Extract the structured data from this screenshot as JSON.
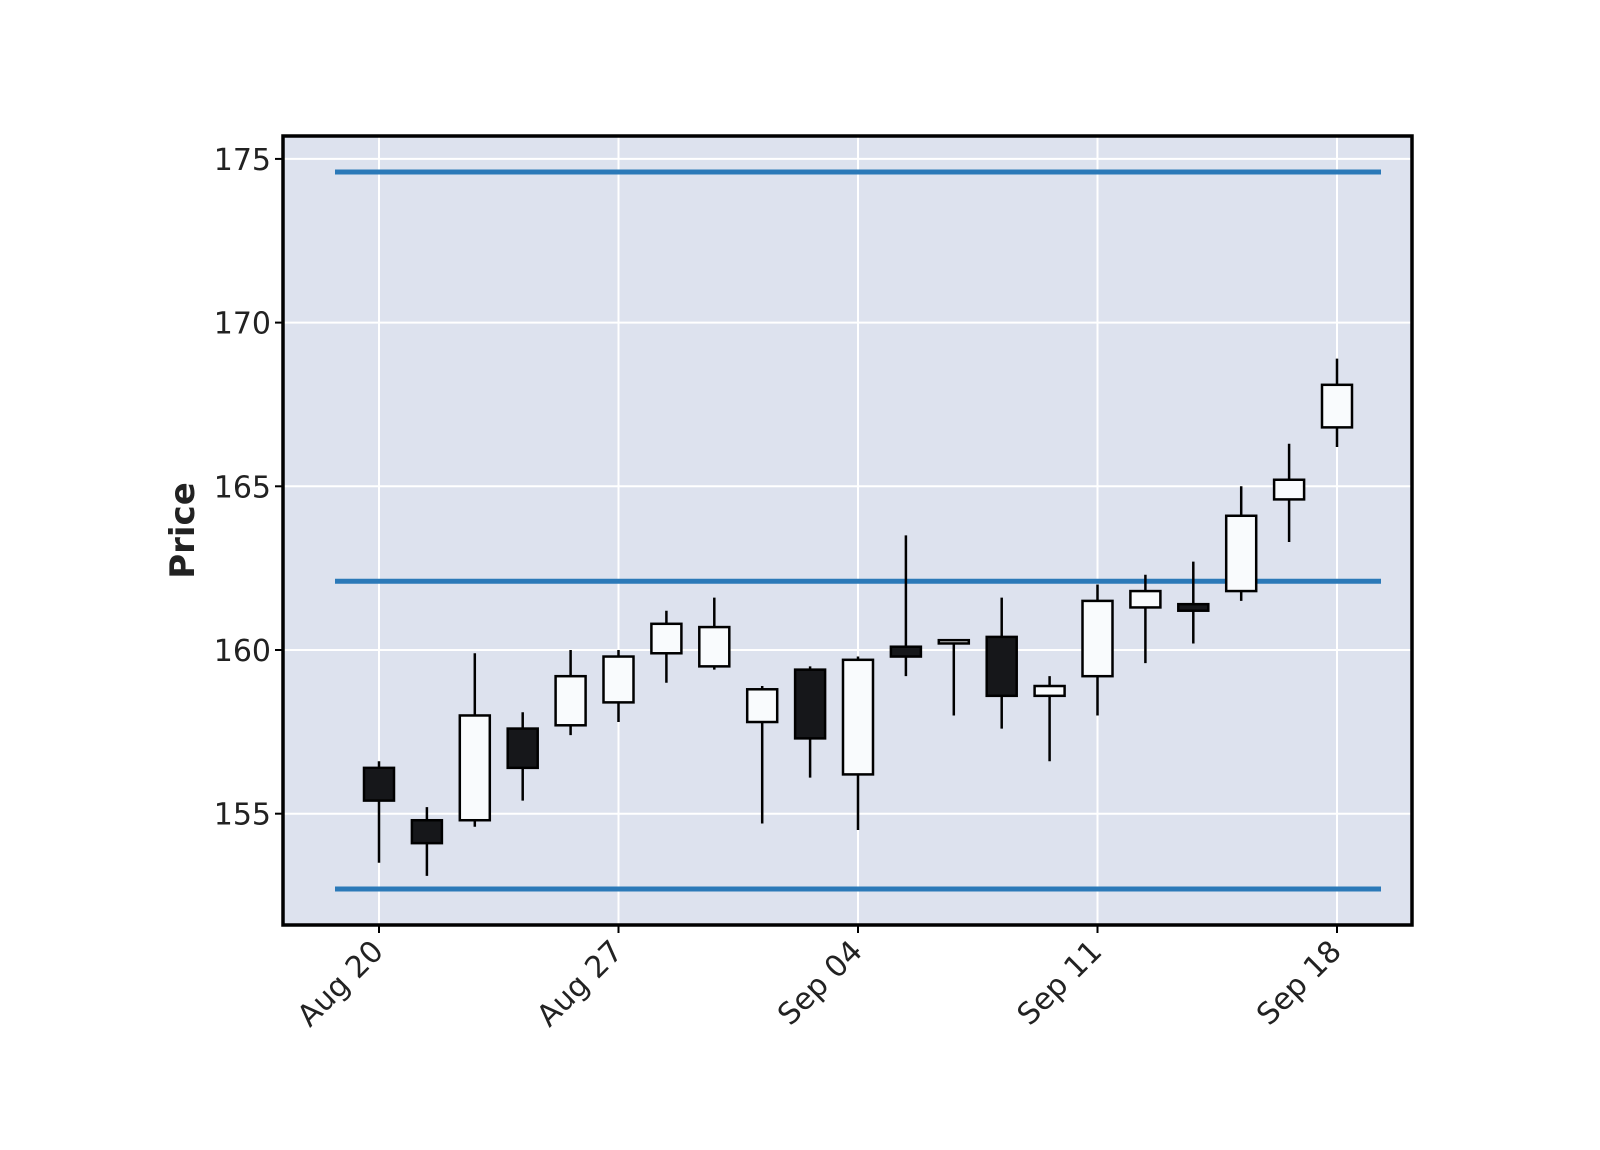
{
  "chart_data": {
    "type": "candlestick",
    "title": "",
    "xlabel": "",
    "ylabel": "Price",
    "ylim": [
      151.6,
      175.7
    ],
    "grid": true,
    "legend": "none",
    "y_ticks": [
      155,
      160,
      165,
      170,
      175
    ],
    "x_tick_labels": [
      {
        "label": "Aug 20",
        "at_index": 0
      },
      {
        "label": "Aug 27",
        "at_index": 5
      },
      {
        "label": "Sep 04",
        "at_index": 10
      },
      {
        "label": "Sep 11",
        "at_index": 15
      },
      {
        "label": "Sep 18",
        "at_index": 20
      }
    ],
    "candles": [
      {
        "open": 156.4,
        "high": 156.6,
        "low": 153.5,
        "close": 155.4
      },
      {
        "open": 154.8,
        "high": 155.2,
        "low": 153.1,
        "close": 154.1
      },
      {
        "open": 154.8,
        "high": 159.9,
        "low": 154.6,
        "close": 158.0
      },
      {
        "open": 157.6,
        "high": 158.1,
        "low": 155.4,
        "close": 156.4
      },
      {
        "open": 157.7,
        "high": 160.0,
        "low": 157.4,
        "close": 159.2
      },
      {
        "open": 158.4,
        "high": 160.0,
        "low": 157.8,
        "close": 159.8
      },
      {
        "open": 159.9,
        "high": 161.2,
        "low": 159.0,
        "close": 160.8
      },
      {
        "open": 159.5,
        "high": 161.6,
        "low": 159.4,
        "close": 160.7
      },
      {
        "open": 157.8,
        "high": 158.9,
        "low": 154.7,
        "close": 158.8
      },
      {
        "open": 159.4,
        "high": 159.5,
        "low": 156.1,
        "close": 157.3
      },
      {
        "open": 156.2,
        "high": 159.8,
        "low": 154.5,
        "close": 159.7
      },
      {
        "open": 160.1,
        "high": 163.5,
        "low": 159.2,
        "close": 159.8
      },
      {
        "open": 160.2,
        "high": 160.3,
        "low": 158.0,
        "close": 160.3
      },
      {
        "open": 160.4,
        "high": 161.6,
        "low": 157.6,
        "close": 158.6
      },
      {
        "open": 158.6,
        "high": 159.2,
        "low": 156.6,
        "close": 158.9
      },
      {
        "open": 159.2,
        "high": 162.0,
        "low": 158.0,
        "close": 161.5
      },
      {
        "open": 161.3,
        "high": 162.3,
        "low": 159.6,
        "close": 161.8
      },
      {
        "open": 161.4,
        "high": 162.7,
        "low": 160.2,
        "close": 161.2
      },
      {
        "open": 161.8,
        "high": 165.0,
        "low": 161.5,
        "close": 164.1
      },
      {
        "open": 164.6,
        "high": 166.3,
        "low": 163.3,
        "close": 165.2
      },
      {
        "open": 166.8,
        "high": 168.9,
        "low": 166.2,
        "close": 168.1
      }
    ],
    "hlines": [
      174.6,
      162.1,
      152.7
    ],
    "colors": {
      "up": "#f9fbfd",
      "down": "#16171a",
      "edge": "#000000",
      "hline": "#2b79b8",
      "plot_bg": "#dde2ee",
      "grid": "#ffffff",
      "frame": "#000000"
    }
  }
}
